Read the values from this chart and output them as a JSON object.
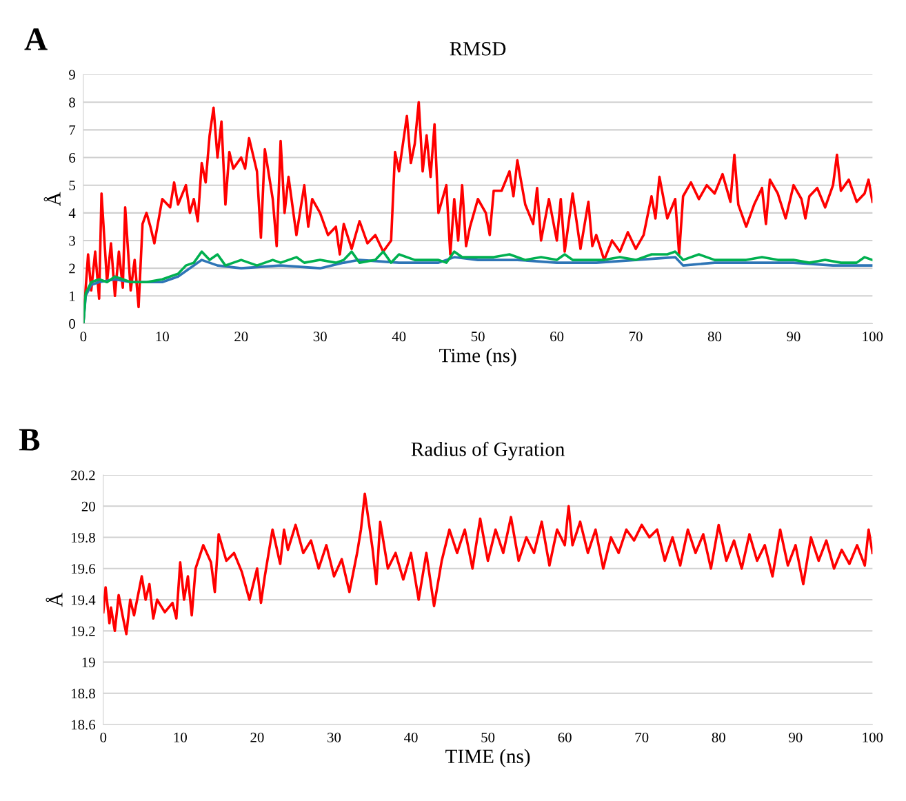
{
  "chart_data": [
    {
      "type": "line",
      "title": "RMSD",
      "xlabel": "Time (ns)",
      "ylabel": "Å",
      "annotations": [
        "A"
      ],
      "xlim": [
        0,
        100
      ],
      "xticks": [
        0,
        10,
        20,
        30,
        40,
        50,
        60,
        70,
        80,
        90,
        100
      ],
      "ylim": [
        0,
        9
      ],
      "yticks": [
        0,
        1,
        2,
        3,
        4,
        5,
        6,
        7,
        8,
        9
      ],
      "grid": "y",
      "line_style": "solid",
      "series": [
        {
          "color": "#ff0000",
          "x": [
            0,
            0.3,
            0.6,
            1,
            1.5,
            2,
            2.3,
            3,
            3.5,
            4,
            4.5,
            5,
            5.3,
            6,
            6.5,
            7,
            7.5,
            8,
            8.5,
            9,
            10,
            11,
            11.5,
            12,
            13,
            13.5,
            14,
            14.5,
            15,
            15.5,
            16,
            16.5,
            17,
            17.5,
            18,
            18.5,
            19,
            20,
            20.5,
            21,
            22,
            22.5,
            23,
            24,
            24.5,
            25,
            25.5,
            26,
            27,
            28,
            28.5,
            29,
            30,
            31,
            32,
            32.5,
            33,
            34,
            35,
            36,
            37,
            38,
            39,
            39.5,
            40,
            41,
            41.5,
            42,
            42.5,
            43,
            43.5,
            44,
            44.5,
            45,
            46,
            46.5,
            47,
            47.5,
            48,
            48.5,
            49,
            50,
            51,
            51.5,
            52,
            53,
            54,
            54.5,
            55,
            56,
            57,
            57.5,
            58,
            59,
            60,
            60.5,
            61,
            62,
            63,
            64,
            64.5,
            65,
            66,
            67,
            68,
            69,
            70,
            71,
            72,
            72.5,
            73,
            74,
            75,
            75.5,
            76,
            77,
            78,
            79,
            80,
            81,
            82,
            82.5,
            83,
            84,
            85,
            86,
            86.5,
            87,
            88,
            89,
            90,
            91,
            91.5,
            92,
            93,
            94,
            95,
            95.5,
            96,
            97,
            98,
            99,
            99.5,
            100
          ],
          "values": [
            0,
            1.3,
            2.5,
            1.2,
            2.6,
            0.9,
            4.7,
            1.5,
            2.9,
            1.0,
            2.6,
            1.3,
            4.2,
            1.2,
            2.3,
            0.6,
            3.6,
            4.0,
            3.5,
            2.9,
            4.5,
            4.2,
            5.1,
            4.3,
            5.0,
            4.0,
            4.5,
            3.7,
            5.8,
            5.1,
            6.8,
            7.8,
            6.0,
            7.3,
            4.3,
            6.2,
            5.6,
            6.0,
            5.6,
            6.7,
            5.5,
            3.1,
            6.3,
            4.5,
            2.8,
            6.6,
            4.0,
            5.3,
            3.2,
            5.0,
            3.5,
            4.5,
            4.0,
            3.2,
            3.5,
            2.5,
            3.6,
            2.7,
            3.7,
            2.9,
            3.2,
            2.6,
            3.0,
            6.2,
            5.5,
            7.5,
            5.8,
            6.5,
            8.0,
            5.5,
            6.8,
            5.3,
            7.2,
            4.0,
            5.0,
            2.5,
            4.5,
            3.0,
            5.0,
            2.8,
            3.5,
            4.5,
            4.0,
            3.2,
            4.8,
            4.8,
            5.5,
            4.6,
            5.9,
            4.3,
            3.6,
            4.9,
            3.0,
            4.5,
            3.0,
            4.5,
            2.6,
            4.7,
            2.7,
            4.4,
            2.8,
            3.2,
            2.3,
            3.0,
            2.6,
            3.3,
            2.7,
            3.2,
            4.6,
            3.8,
            5.3,
            3.8,
            4.5,
            2.5,
            4.6,
            5.1,
            4.5,
            5.0,
            4.7,
            5.4,
            4.4,
            6.1,
            4.3,
            3.5,
            4.3,
            4.9,
            3.6,
            5.2,
            4.7,
            3.8,
            5.0,
            4.5,
            3.8,
            4.6,
            4.9,
            4.2,
            5.0,
            6.1,
            4.8,
            5.2,
            4.4,
            4.7,
            5.2,
            4.4
          ]
        },
        {
          "color": "#2e75b6",
          "x": [
            0,
            0.3,
            1,
            2,
            4,
            6,
            8,
            10,
            12,
            15,
            17,
            20,
            25,
            30,
            33,
            35,
            40,
            45,
            47,
            50,
            55,
            60,
            65,
            70,
            75,
            76,
            80,
            85,
            90,
            95,
            100
          ],
          "values": [
            0,
            1.0,
            1.4,
            1.5,
            1.6,
            1.5,
            1.5,
            1.5,
            1.7,
            2.3,
            2.1,
            2.0,
            2.1,
            2.0,
            2.2,
            2.3,
            2.2,
            2.2,
            2.4,
            2.3,
            2.3,
            2.2,
            2.2,
            2.3,
            2.4,
            2.1,
            2.2,
            2.2,
            2.2,
            2.1,
            2.1
          ]
        },
        {
          "color": "#00b050",
          "x": [
            0,
            0.3,
            1,
            2,
            3,
            4,
            5,
            6,
            8,
            10,
            12,
            13,
            14,
            15,
            16,
            17,
            18,
            20,
            22,
            24,
            25,
            27,
            28,
            30,
            32,
            33,
            34,
            35,
            37,
            38,
            39,
            40,
            42,
            45,
            46,
            47,
            48,
            50,
            52,
            54,
            56,
            58,
            60,
            61,
            62,
            65,
            66,
            68,
            70,
            72,
            74,
            75,
            76,
            78,
            80,
            82,
            84,
            86,
            88,
            90,
            92,
            94,
            96,
            98,
            99,
            100
          ],
          "values": [
            0,
            1.1,
            1.5,
            1.6,
            1.5,
            1.7,
            1.6,
            1.5,
            1.5,
            1.6,
            1.8,
            2.1,
            2.2,
            2.6,
            2.3,
            2.5,
            2.1,
            2.3,
            2.1,
            2.3,
            2.2,
            2.4,
            2.2,
            2.3,
            2.2,
            2.3,
            2.6,
            2.2,
            2.3,
            2.6,
            2.2,
            2.5,
            2.3,
            2.3,
            2.2,
            2.6,
            2.4,
            2.4,
            2.4,
            2.5,
            2.3,
            2.4,
            2.3,
            2.5,
            2.3,
            2.3,
            2.3,
            2.4,
            2.3,
            2.5,
            2.5,
            2.6,
            2.3,
            2.5,
            2.3,
            2.3,
            2.3,
            2.4,
            2.3,
            2.3,
            2.2,
            2.3,
            2.2,
            2.2,
            2.4,
            2.3
          ]
        }
      ]
    },
    {
      "type": "line",
      "title": "Radius of Gyration",
      "xlabel": "TIME (ns)",
      "ylabel": "Å",
      "annotations": [
        "B"
      ],
      "xlim": [
        0,
        100
      ],
      "xticks": [
        0,
        10,
        20,
        30,
        40,
        50,
        60,
        70,
        80,
        90,
        100
      ],
      "ylim": [
        18.6,
        20.2
      ],
      "yticks": [
        18.6,
        18.8,
        19,
        19.2,
        19.4,
        19.6,
        19.8,
        20,
        20.2
      ],
      "grid": "y",
      "line_style": "solid",
      "series": [
        {
          "color": "#ff0000",
          "x": [
            0,
            0.3,
            0.8,
            1,
            1.5,
            2,
            2.5,
            3,
            3.5,
            4,
            5,
            5.5,
            6,
            6.5,
            7,
            8,
            9,
            9.5,
            10,
            10.5,
            11,
            11.5,
            12,
            13,
            14,
            14.5,
            15,
            16,
            17,
            18,
            19,
            20,
            20.5,
            21,
            22,
            23,
            23.5,
            24,
            25,
            26,
            27,
            28,
            29,
            30,
            31,
            32,
            33,
            33.5,
            34,
            35,
            35.5,
            36,
            37,
            38,
            39,
            40,
            41,
            42,
            43,
            44,
            45,
            46,
            47,
            48,
            49,
            50,
            51,
            52,
            53,
            54,
            55,
            56,
            57,
            58,
            59,
            60,
            60.5,
            61,
            62,
            63,
            64,
            65,
            66,
            67,
            68,
            69,
            70,
            71,
            72,
            73,
            74,
            75,
            76,
            77,
            78,
            79,
            80,
            81,
            82,
            83,
            84,
            85,
            86,
            87,
            88,
            89,
            90,
            91,
            92,
            93,
            94,
            95,
            96,
            97,
            98,
            99,
            99.5,
            100
          ],
          "values": [
            19.32,
            19.48,
            19.25,
            19.35,
            19.2,
            19.43,
            19.3,
            19.18,
            19.4,
            19.3,
            19.55,
            19.4,
            19.5,
            19.28,
            19.4,
            19.32,
            19.38,
            19.28,
            19.64,
            19.4,
            19.55,
            19.3,
            19.6,
            19.75,
            19.64,
            19.45,
            19.82,
            19.65,
            19.7,
            19.58,
            19.4,
            19.6,
            19.38,
            19.55,
            19.85,
            19.63,
            19.85,
            19.72,
            19.88,
            19.7,
            19.78,
            19.6,
            19.75,
            19.55,
            19.66,
            19.45,
            19.7,
            19.85,
            20.08,
            19.73,
            19.5,
            19.9,
            19.6,
            19.7,
            19.53,
            19.7,
            19.4,
            19.7,
            19.36,
            19.65,
            19.85,
            19.7,
            19.85,
            19.6,
            19.92,
            19.65,
            19.85,
            19.7,
            19.93,
            19.65,
            19.8,
            19.7,
            19.9,
            19.62,
            19.85,
            19.75,
            20.0,
            19.75,
            19.9,
            19.7,
            19.85,
            19.6,
            19.8,
            19.7,
            19.85,
            19.78,
            19.88,
            19.8,
            19.85,
            19.65,
            19.8,
            19.62,
            19.85,
            19.7,
            19.82,
            19.6,
            19.88,
            19.65,
            19.78,
            19.6,
            19.82,
            19.65,
            19.75,
            19.55,
            19.85,
            19.62,
            19.75,
            19.5,
            19.8,
            19.65,
            19.78,
            19.6,
            19.72,
            19.63,
            19.75,
            19.62,
            19.85,
            19.7
          ]
        }
      ]
    }
  ]
}
